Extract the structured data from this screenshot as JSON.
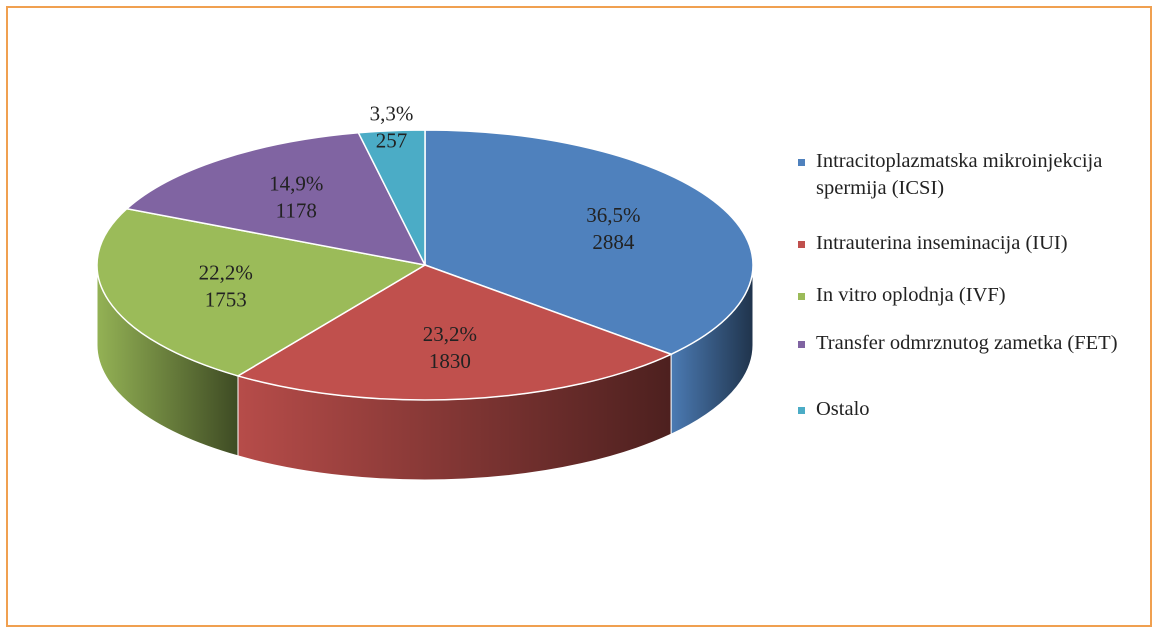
{
  "chart_data": {
    "type": "pie",
    "categories": [
      "Intracitoplazmatska mikroinjekcija spermija (ICSI)",
      "Intrauterina inseminacija (IUI)",
      "In vitro oplodnja (IVF)",
      "Transfer odmrznutog zametka (FET)",
      "Ostalo"
    ],
    "values": [
      2884,
      1830,
      1753,
      1178,
      257
    ],
    "percentages": [
      36.5,
      23.2,
      22.2,
      14.9,
      3.3
    ],
    "percentage_labels": [
      "36,5%",
      "23,2%",
      "22,2%",
      "14,9%",
      "3,3%"
    ],
    "colors": [
      "#4f81bd",
      "#c0504d",
      "#9bbb59",
      "#8064a2",
      "#4bacc6"
    ],
    "legend": "right"
  }
}
